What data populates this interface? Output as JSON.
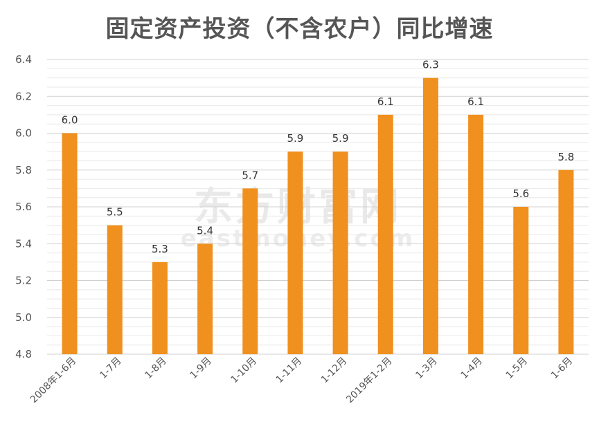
{
  "chart_data": {
    "type": "bar",
    "title": "固定资产投资（不含农户）同比增速",
    "categories": [
      "2008年1-6月",
      "1-7月",
      "1-8月",
      "1-9月",
      "1-10月",
      "1-11月",
      "1-12月",
      "2019年1-2月",
      "1-3月",
      "1-4月",
      "1-5月",
      "1-6月"
    ],
    "values": [
      6.0,
      5.5,
      5.3,
      5.4,
      5.7,
      5.9,
      5.9,
      6.1,
      6.3,
      6.1,
      5.6,
      5.8
    ],
    "data_labels": [
      "6.0",
      "5.5",
      "5.3",
      "5.4",
      "5.7",
      "5.9",
      "5.9",
      "6.1",
      "6.3",
      "6.1",
      "5.6",
      "5.8"
    ],
    "yticks": [
      "4.8",
      "5.0",
      "5.2",
      "5.4",
      "5.6",
      "5.8",
      "6.0",
      "6.2",
      "6.4"
    ],
    "ylim": [
      4.8,
      6.4
    ],
    "xlabel": "",
    "ylabel": "",
    "grid": true,
    "bar_color": "#F0901E",
    "watermark": {
      "cn": "东方财富网",
      "en": "eastmoney.com"
    }
  }
}
